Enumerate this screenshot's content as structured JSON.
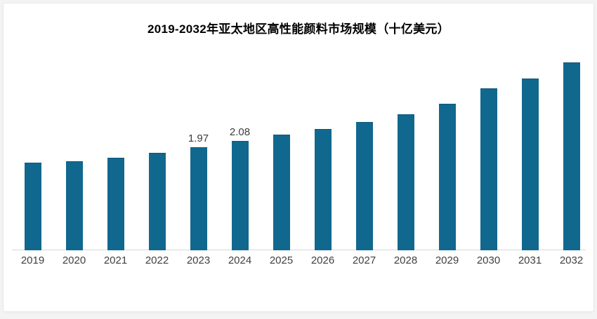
{
  "page": {
    "background_color": "#f3f3f4",
    "card_color": "#ffffff",
    "card_border_color": "#e9e9e9"
  },
  "chart_data": {
    "type": "bar",
    "title": "2019-2032年亚太地区高性能颜料市场规模（十亿美元）",
    "categories": [
      "2019",
      "2020",
      "2021",
      "2022",
      "2023",
      "2024",
      "2025",
      "2026",
      "2027",
      "2028",
      "2029",
      "2030",
      "2031",
      "2032"
    ],
    "values": [
      1.67,
      1.7,
      1.77,
      1.86,
      1.97,
      2.08,
      2.2,
      2.31,
      2.45,
      2.6,
      2.79,
      3.09,
      3.28,
      3.58
    ],
    "data_labels": [
      "",
      "",
      "",
      "",
      "1.97",
      "2.08",
      "",
      "",
      "",
      "",
      "",
      "",
      "",
      ""
    ],
    "xlabel": "",
    "ylabel": "",
    "ylim": [
      0,
      3.9
    ],
    "grid": false,
    "legend": "none",
    "bar_color": "#11688F",
    "bar_top_edge_color": "#0c567a",
    "axis_line_color": "#d8d8d8",
    "value_label_color": "#3c3c3c",
    "tick_label_color": "#3f3f3f",
    "title_color": "#000000"
  }
}
